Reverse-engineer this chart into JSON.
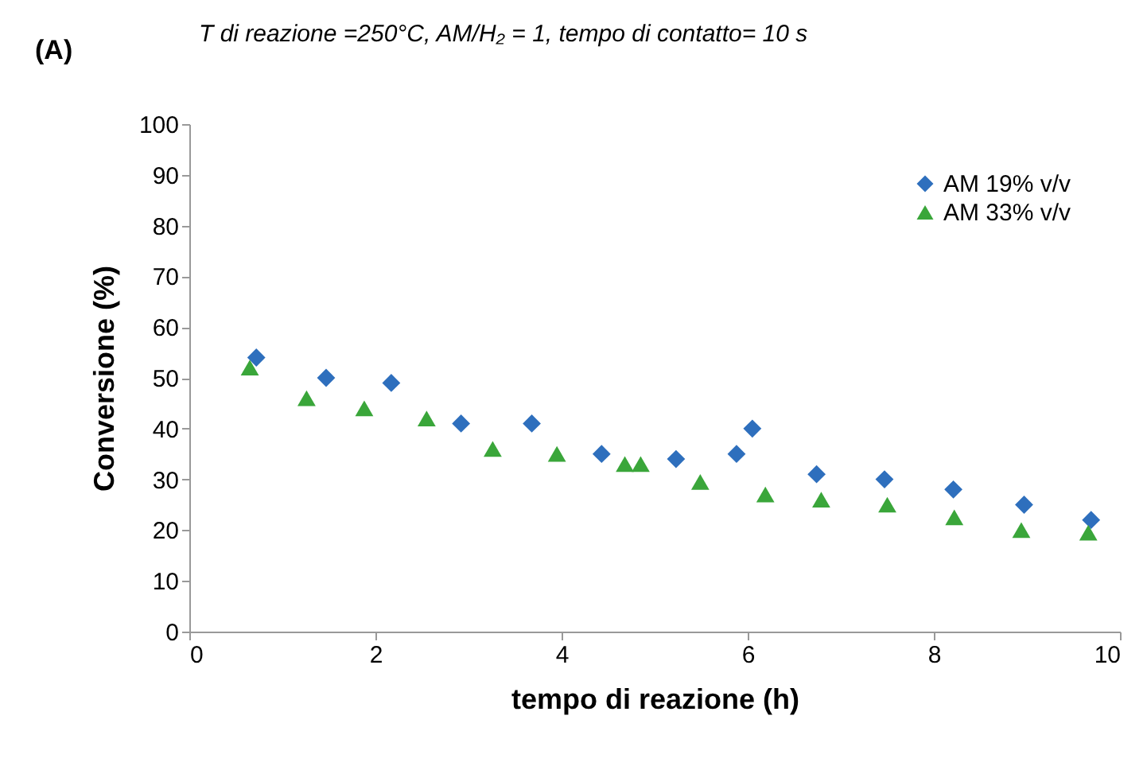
{
  "chart_data": {
    "type": "scatter",
    "title": "T di reazione =250°C, AM/H₂ = 1, tempo di contatto= 10 s",
    "annotations": [
      "(A)"
    ],
    "xlabel": "tempo di reazione (h)",
    "ylabel": "Conversione (%)",
    "xlim": [
      0,
      10
    ],
    "xticks": [
      0,
      2,
      4,
      6,
      8,
      10
    ],
    "ylim": [
      0,
      100
    ],
    "yticks": [
      0,
      10,
      20,
      30,
      40,
      50,
      60,
      70,
      80,
      90,
      100
    ],
    "grid": false,
    "legend": "top right",
    "series": [
      {
        "name": "AM 19% v/v",
        "color": "#2e6fbd",
        "marker": "diamond",
        "x": [
          0.72,
          1.47,
          2.17,
          2.92,
          3.68,
          4.43,
          5.23,
          5.88,
          6.05,
          6.74,
          7.47,
          8.21,
          8.97,
          9.69
        ],
        "values": [
          54,
          50,
          49,
          41,
          41,
          35,
          34,
          35,
          40,
          31,
          30,
          28,
          25,
          22
        ]
      },
      {
        "name": "AM 33% v/v",
        "color": "#3aa63a",
        "marker": "triangle",
        "x": [
          0.65,
          1.26,
          1.88,
          2.55,
          3.26,
          3.95,
          4.68,
          4.85,
          5.49,
          6.19,
          6.79,
          7.5,
          8.22,
          8.94,
          9.66
        ],
        "values": [
          52,
          46,
          44,
          42,
          36,
          35,
          33,
          33,
          29.5,
          27,
          26,
          25,
          22.5,
          20,
          19.5
        ]
      }
    ]
  }
}
